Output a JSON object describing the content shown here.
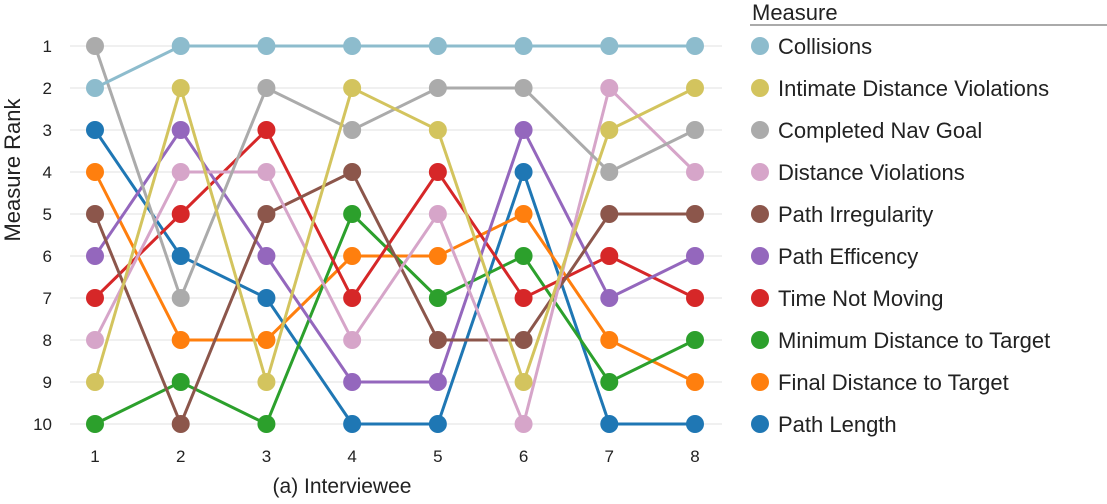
{
  "chart_data": {
    "type": "line",
    "subtype": "bump",
    "xlabel": "(a) Interviewee",
    "ylabel": "Measure Rank",
    "x": [
      1,
      2,
      3,
      4,
      5,
      6,
      7,
      8
    ],
    "y_ticks": [
      1,
      2,
      3,
      4,
      5,
      6,
      7,
      8,
      9,
      10
    ],
    "ylim": [
      1,
      10
    ],
    "y_inverted": true,
    "grid": true,
    "legend_title": "Measure",
    "legend_placement": "right",
    "series": [
      {
        "name": "Collisions",
        "color": "#8dbccd",
        "values": [
          2,
          1,
          1,
          1,
          1,
          1,
          1,
          1
        ]
      },
      {
        "name": "Intimate Distance Violations",
        "color": "#d3c45e",
        "values": [
          9,
          2,
          9,
          2,
          3,
          9,
          3,
          2
        ]
      },
      {
        "name": "Completed Nav Goal",
        "color": "#ababab",
        "values": [
          1,
          7,
          2,
          3,
          2,
          2,
          4,
          3
        ]
      },
      {
        "name": "Distance Violations",
        "color": "#d6a5c9",
        "values": [
          8,
          4,
          4,
          8,
          5,
          10,
          2,
          4
        ]
      },
      {
        "name": "Path Irregularity",
        "color": "#8c564b",
        "values": [
          5,
          10,
          5,
          4,
          8,
          8,
          5,
          5
        ]
      },
      {
        "name": "Path Efficency",
        "color": "#9467bd",
        "values": [
          6,
          3,
          6,
          9,
          9,
          3,
          7,
          6
        ]
      },
      {
        "name": "Time Not Moving",
        "color": "#d62728",
        "values": [
          7,
          5,
          3,
          7,
          4,
          7,
          6,
          7
        ]
      },
      {
        "name": "Minimum Distance to Target",
        "color": "#2ca02c",
        "values": [
          10,
          9,
          10,
          5,
          7,
          6,
          9,
          8
        ]
      },
      {
        "name": "Final Distance to Target",
        "color": "#ff7f0e",
        "values": [
          4,
          8,
          8,
          6,
          6,
          5,
          8,
          9
        ]
      },
      {
        "name": "Path Length",
        "color": "#1f77b4",
        "values": [
          3,
          6,
          7,
          10,
          10,
          4,
          10,
          10
        ]
      }
    ]
  }
}
